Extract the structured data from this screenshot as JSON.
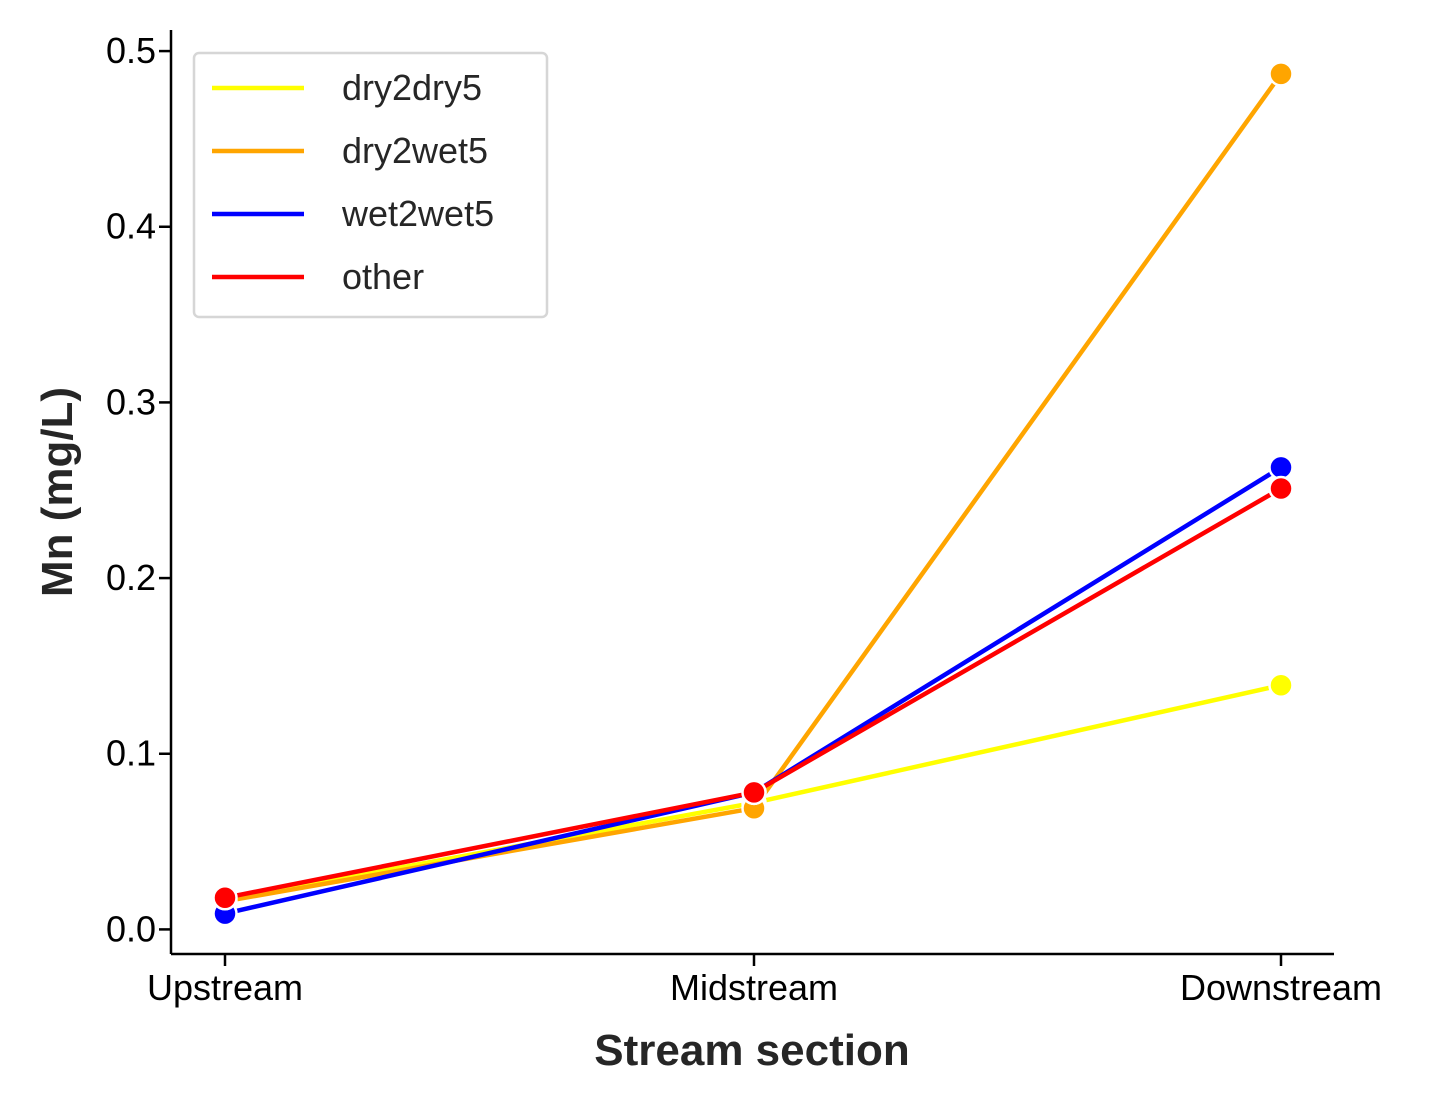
{
  "chart_data": {
    "type": "line",
    "categories": [
      "Upstream",
      "Midstream",
      "Downstream"
    ],
    "xlabel": "Stream section",
    "ylabel": "Mn (mg/L)",
    "ylim": [
      -0.014,
      0.512
    ],
    "yticks": [
      "0.0",
      "0.1",
      "0.2",
      "0.3",
      "0.4",
      "0.5"
    ],
    "ytick_values": [
      0.0,
      0.1,
      0.2,
      0.3,
      0.4,
      0.5
    ],
    "grid": false,
    "legend_position": "top-left",
    "series": [
      {
        "name": "dry2dry5",
        "color": "#ffff00",
        "values": [
          0.017,
          0.072,
          0.139
        ]
      },
      {
        "name": "dry2wet5",
        "color": "#ffa500",
        "values": [
          0.016,
          0.069,
          0.487
        ]
      },
      {
        "name": "wet2wet5",
        "color": "#0000ff",
        "values": [
          0.009,
          0.078,
          0.263
        ]
      },
      {
        "name": "other",
        "color": "#ff0000",
        "values": [
          0.018,
          0.078,
          0.251
        ]
      }
    ]
  }
}
